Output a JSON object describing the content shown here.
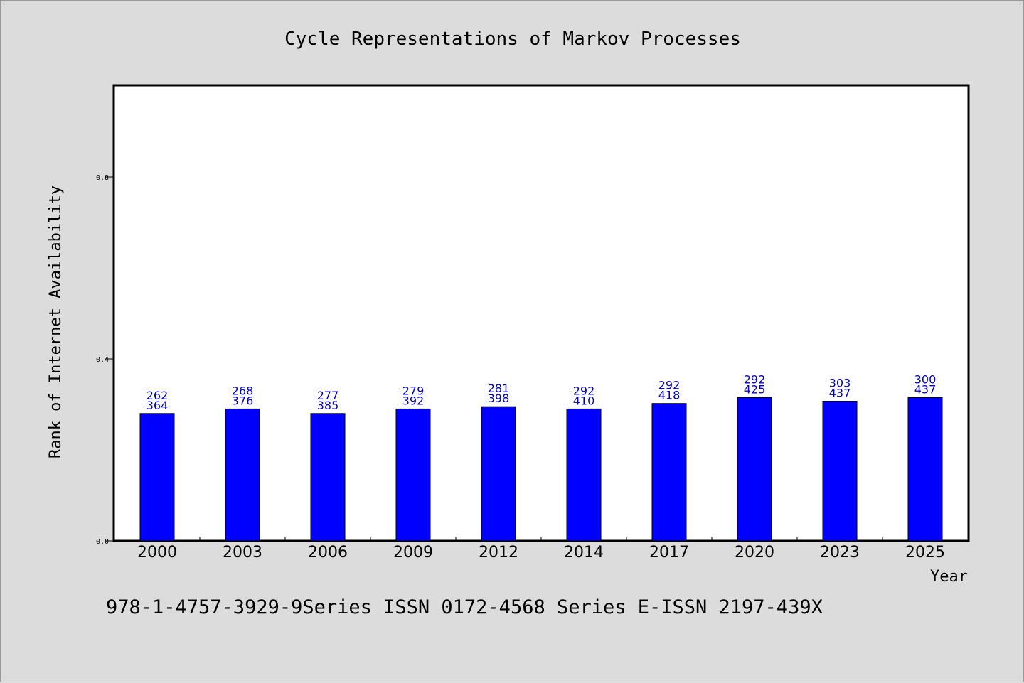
{
  "colors": {
    "bar": "#0000ff",
    "label": "#0000cc",
    "plot_bg": "#ffffff",
    "page_bg": "#dcdcdc"
  },
  "footer_text": "978-1-4757-3929-9Series ISSN 0172-4568 Series E-ISSN 2197-439X",
  "chart_data": {
    "type": "bar",
    "title": "Cycle Representations of Markov Processes",
    "xlabel": "Year",
    "ylabel": "Rank of Internet Availability",
    "categories": [
      "2000",
      "2003",
      "2006",
      "2009",
      "2012",
      "2014",
      "2017",
      "2020",
      "2023",
      "2025"
    ],
    "values": [
      0.28,
      0.29,
      0.28,
      0.29,
      0.295,
      0.29,
      0.302,
      0.315,
      0.307,
      0.315
    ],
    "label_top": [
      "262",
      "268",
      "277",
      "279",
      "281",
      "292",
      "292",
      "292",
      "303",
      "300"
    ],
    "label_bottom": [
      "364",
      "376",
      "385",
      "392",
      "398",
      "410",
      "418",
      "425",
      "437",
      "437"
    ],
    "yticks": [
      "0.0",
      "0.4",
      "0.8"
    ],
    "ytick_values": [
      0.0,
      0.4,
      0.8
    ],
    "ylim": [
      0,
      1.0
    ],
    "grid": false
  }
}
